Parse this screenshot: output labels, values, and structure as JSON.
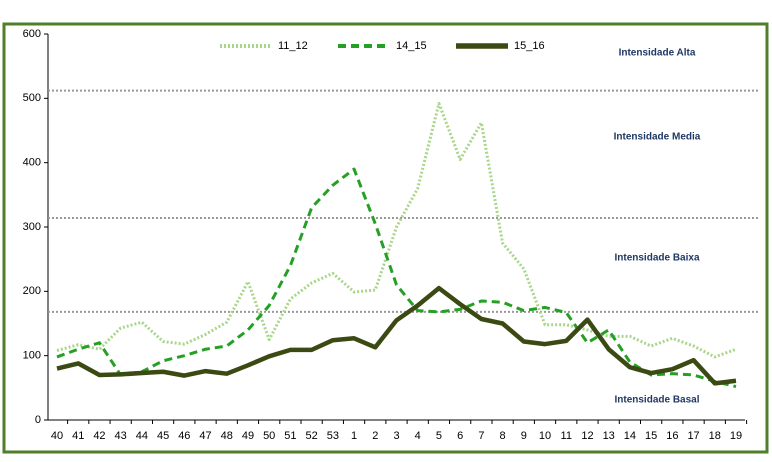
{
  "chart_data": {
    "type": "line",
    "categories": [
      "40",
      "41",
      "42",
      "43",
      "44",
      "45",
      "46",
      "47",
      "48",
      "49",
      "50",
      "51",
      "52",
      "53",
      "1",
      "2",
      "3",
      "4",
      "5",
      "6",
      "7",
      "8",
      "9",
      "10",
      "11",
      "12",
      "13",
      "14",
      "15",
      "16",
      "17",
      "18",
      "19"
    ],
    "series": [
      {
        "name": "11_12",
        "color": "#a9d68a",
        "style": "dotted",
        "values": [
          108,
          117,
          110,
          143,
          152,
          122,
          118,
          133,
          152,
          215,
          125,
          188,
          213,
          228,
          199,
          202,
          300,
          360,
          492,
          405,
          462,
          275,
          235,
          148,
          148,
          140,
          130,
          130,
          115,
          127,
          115,
          98,
          110
        ]
      },
      {
        "name": "14_15",
        "color": "#25a025",
        "style": "dashed",
        "values": [
          98,
          110,
          120,
          70,
          75,
          92,
          100,
          110,
          115,
          140,
          178,
          240,
          330,
          365,
          390,
          305,
          210,
          170,
          168,
          172,
          185,
          183,
          170,
          175,
          167,
          120,
          140,
          90,
          70,
          72,
          70,
          60,
          52
        ]
      },
      {
        "name": "15_16",
        "color": "#3b4a12",
        "style": "solid",
        "values": [
          80,
          88,
          70,
          71,
          73,
          75,
          69,
          76,
          72,
          85,
          99,
          109,
          109,
          124,
          127,
          113,
          155,
          178,
          205,
          180,
          157,
          150,
          122,
          118,
          123,
          156,
          110,
          82,
          73,
          79,
          93,
          57,
          61
        ]
      }
    ],
    "thresholds": [
      512,
      314,
      168
    ],
    "annotations": [
      "Intensidade Alta",
      "Intensidade Media",
      "Intensidade Baixa",
      "Intensidade Basal"
    ],
    "ylim": [
      0,
      600
    ],
    "yticks": [
      0,
      100,
      200,
      300,
      400,
      500,
      600
    ]
  }
}
